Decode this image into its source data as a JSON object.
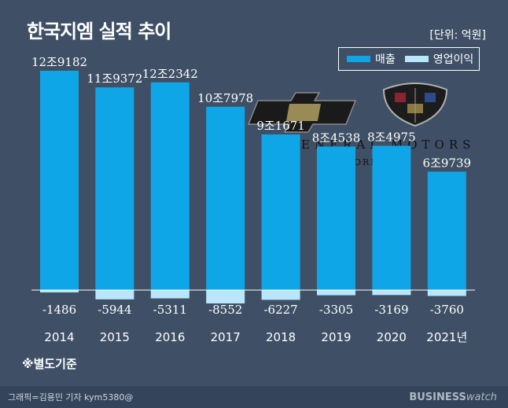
{
  "title": "한국지엠 실적 추이",
  "unit": "[단위: 억원]",
  "legend": {
    "sales": {
      "label": "매출",
      "color": "#0fa6e8"
    },
    "operating_profit": {
      "label": "영업이익",
      "color": "#b9e6fb"
    }
  },
  "footnote": "※별도기준",
  "footer": {
    "credit": "그래픽=김용민 기자 kym5380@",
    "brand_bold": "BUSINESS",
    "brand_light": "watch"
  },
  "logos": {
    "gm_text": "ENERAL MOTORS",
    "gm_sub": "OREA"
  },
  "chart_data": {
    "type": "bar",
    "categories": [
      "2014",
      "2015",
      "2016",
      "2017",
      "2018",
      "2019",
      "2020",
      "2021년"
    ],
    "series": [
      {
        "name": "매출",
        "values": [
          129182,
          119372,
          122342,
          107978,
          91671,
          84538,
          84975,
          69739
        ],
        "labels": [
          "12조9182",
          "11조9372",
          "12조2342",
          "10조7978",
          "9조1671",
          "8조4538",
          "8조4975",
          "6조9739"
        ]
      },
      {
        "name": "영업이익",
        "values": [
          -1486,
          -5944,
          -5311,
          -8552,
          -6227,
          -3305,
          -3169,
          -3760
        ],
        "labels": [
          "-1486",
          "-5944",
          "-5311",
          "-8552",
          "-6227",
          "-3305",
          "-3169",
          "-3760"
        ]
      }
    ]
  }
}
